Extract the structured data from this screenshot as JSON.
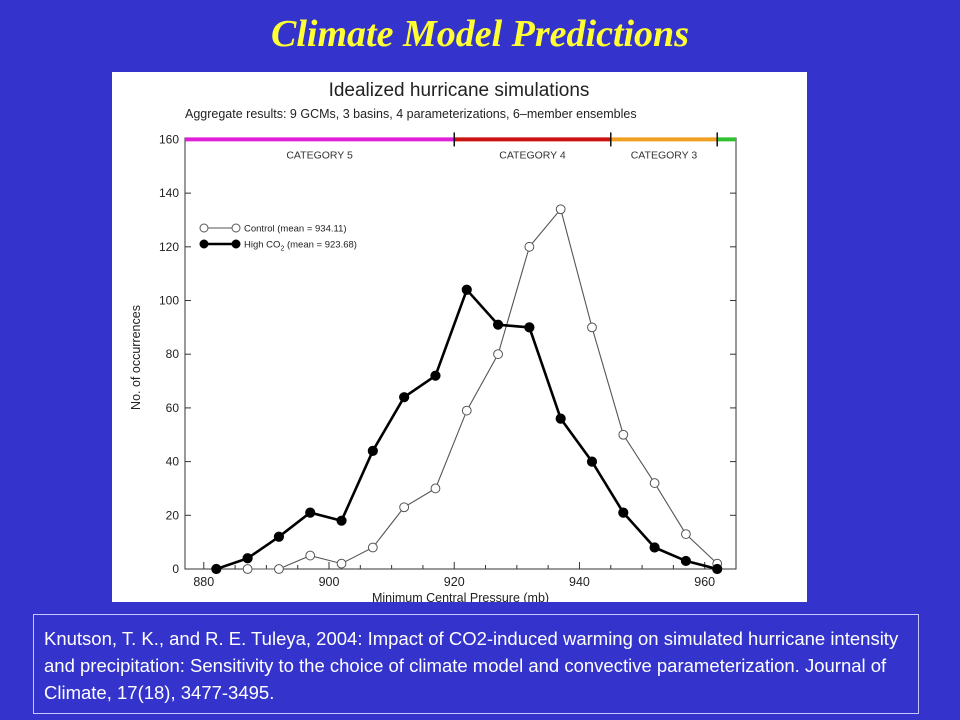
{
  "slide": {
    "title": "Climate Model Predictions",
    "citation": "Knutson, T. K., and R. E. Tuleya, 2004: Impact of CO2-induced warming on simulated hurricane intensity and precipitation: Sensitivity to the choice of climate model and convective parameterization.  Journal of Climate, 17(18), 3477-3495."
  },
  "colors": {
    "background": "#3434cc",
    "title": "#ffff33",
    "category5": "#e020d8",
    "category4": "#cc1111",
    "category3": "#f0a020",
    "category_end": "#30c030"
  },
  "chart_data": {
    "type": "line",
    "title": "Idealized hurricane simulations",
    "subtitle": "Aggregate results:  9 GCMs, 3 basins, 4 parameterizations, 6–member ensembles",
    "xlabel": "Minimum Central Pressure (mb)",
    "ylabel": "No. of occurrences",
    "xlim": [
      877,
      965
    ],
    "ylim": [
      0,
      165
    ],
    "xticks": [
      880,
      900,
      920,
      940,
      960
    ],
    "yticks": [
      0,
      20,
      40,
      60,
      80,
      100,
      120,
      140,
      160
    ],
    "categories_band": [
      {
        "label": "CATEGORY 5",
        "from": 877,
        "to": 920,
        "color": "#e020d8"
      },
      {
        "label": "CATEGORY 4",
        "from": 920,
        "to": 945,
        "color": "#cc1111"
      },
      {
        "label": "CATEGORY 3",
        "from": 945,
        "to": 962,
        "color": "#f0a020"
      },
      {
        "label": "",
        "from": 962,
        "to": 965,
        "color": "#30c030"
      }
    ],
    "category_boundaries": [
      920,
      945,
      962
    ],
    "band_y": 160,
    "legend_position": "top-left",
    "series": [
      {
        "name": "Control",
        "legend_prefix": "Control (mean = ",
        "legend_value": "934.11",
        "legend_suffix": ")",
        "marker": "open-circle",
        "x": [
          887,
          892,
          897,
          902,
          907,
          912,
          917,
          922,
          927,
          932,
          937,
          942,
          947,
          952,
          957,
          962
        ],
        "values": [
          0,
          0,
          5,
          2,
          8,
          23,
          30,
          59,
          80,
          120,
          134,
          90,
          50,
          32,
          13,
          2
        ]
      },
      {
        "name": "High CO2",
        "legend_prefix": "High CO",
        "legend_sub": "2",
        "legend_value": "923.68",
        "legend_suffix": ")",
        "legend_mid": " (mean = ",
        "marker": "filled-circle",
        "x": [
          882,
          887,
          892,
          897,
          902,
          907,
          912,
          917,
          922,
          927,
          932,
          937,
          942,
          947,
          952,
          957,
          962
        ],
        "values": [
          0,
          4,
          12,
          21,
          18,
          44,
          64,
          72,
          104,
          91,
          90,
          56,
          40,
          21,
          8,
          3,
          0
        ]
      }
    ]
  }
}
